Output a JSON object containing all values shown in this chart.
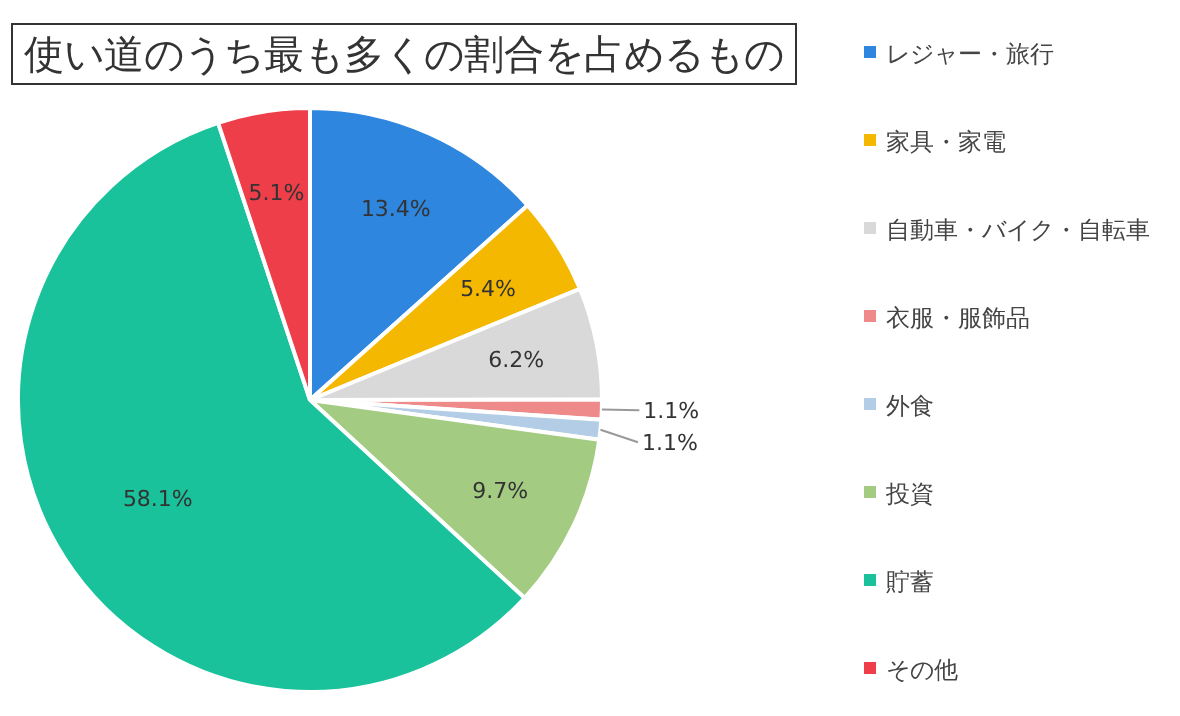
{
  "chart_data": {
    "type": "pie",
    "title": "使い道のうち最も多くの割合を占めるもの",
    "categories": [
      "レジャー・旅行",
      "家具・家電",
      "自動車・バイク・自転車",
      "衣服・服飾品",
      "外食",
      "投資",
      "貯蓄",
      "その他"
    ],
    "values": [
      13.4,
      5.4,
      6.2,
      1.1,
      1.1,
      9.7,
      58.1,
      5.1
    ],
    "colors": [
      "#2e86de",
      "#f5b800",
      "#d9d9d9",
      "#ee8a8a",
      "#b4cde6",
      "#a3cc82",
      "#19c29a",
      "#ee3e4a"
    ],
    "value_labels": [
      "13.4%",
      "5.4%",
      "6.2%",
      "1.1%",
      "1.1%",
      "9.7%",
      "58.1%",
      "5.1%"
    ],
    "legend": "right"
  }
}
